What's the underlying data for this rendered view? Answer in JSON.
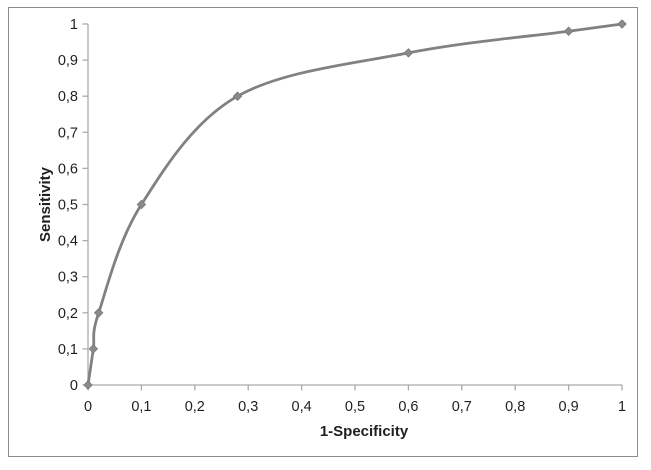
{
  "chart_data": {
    "type": "line",
    "title": "",
    "xlabel": "1-Specificity",
    "ylabel": "Sensitivity",
    "xlim": [
      0,
      1
    ],
    "ylim": [
      0,
      1
    ],
    "grid": false,
    "legend": "none",
    "marker_shape": "diamond",
    "smooth": true,
    "decimal_separator": ",",
    "series": [
      {
        "name": "ROC curve",
        "points": [
          [
            0,
            0
          ],
          [
            0.01,
            0.1
          ],
          [
            0.02,
            0.2
          ],
          [
            0.1,
            0.5
          ],
          [
            0.28,
            0.8
          ],
          [
            0.6,
            0.92
          ],
          [
            0.9,
            0.98
          ],
          [
            1.0,
            1.0
          ]
        ]
      }
    ],
    "x_ticks": {
      "values": [
        0,
        0.1,
        0.2,
        0.3,
        0.4,
        0.5,
        0.6,
        0.7,
        0.8,
        0.9,
        1
      ],
      "labels": [
        "0",
        "0,1",
        "0,2",
        "0,3",
        "0,4",
        "0,5",
        "0,6",
        "0,7",
        "0,8",
        "0,9",
        "1"
      ]
    },
    "y_ticks": {
      "values": [
        0,
        0.1,
        0.2,
        0.3,
        0.4,
        0.5,
        0.6,
        0.7,
        0.8,
        0.9,
        1
      ],
      "labels": [
        "0",
        "0,1",
        "0,2",
        "0,3",
        "0,4",
        "0,5",
        "0,6",
        "0,7",
        "0,8",
        "0,9",
        "1"
      ]
    }
  },
  "colors": {
    "curve": "#818181",
    "marker_fill": "#8A8A8A",
    "marker_stroke": "#7A7A7A",
    "axis": "#ABABAB",
    "border": "#8C8C8C",
    "text": "#1F1F1F",
    "background": "#FFFFFF"
  }
}
